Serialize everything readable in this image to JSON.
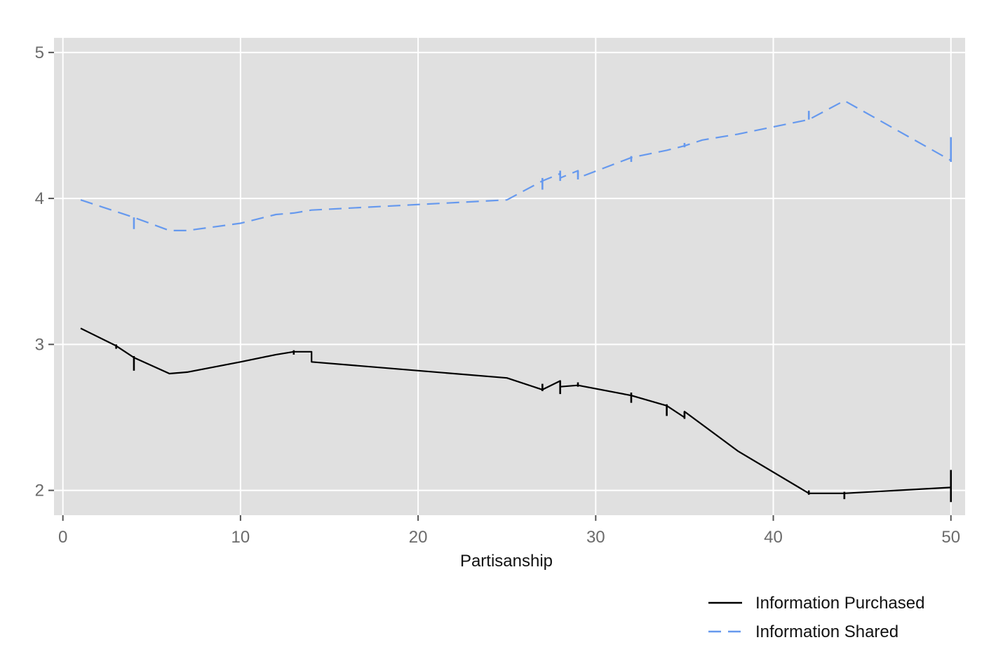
{
  "chart_data": {
    "type": "line",
    "xlabel": "Partisanship",
    "ylabel": "",
    "xlim": [
      -0.5,
      50.8
    ],
    "ylim": [
      1.83,
      5.1
    ],
    "x_ticks": [
      0,
      10,
      20,
      30,
      40,
      50
    ],
    "y_ticks": [
      2,
      3,
      4,
      5
    ],
    "x_tick_labels": [
      "0",
      "10",
      "20",
      "30",
      "40",
      "50"
    ],
    "y_tick_labels": [
      "2",
      "3",
      "4",
      "5"
    ],
    "grid": true,
    "legend_position": "bottom-right",
    "panel_color": "#e0e0e0",
    "grid_color": "#ffffff",
    "series": [
      {
        "name": "Information Purchased",
        "color": "#000000",
        "dash": "solid",
        "points": [
          [
            1,
            3.11
          ],
          [
            3,
            2.99
          ],
          [
            4,
            2.91
          ],
          [
            6,
            2.8
          ],
          [
            7,
            2.81
          ],
          [
            10,
            2.88
          ],
          [
            12,
            2.93
          ],
          [
            13,
            2.95
          ],
          [
            14,
            2.95
          ],
          [
            14,
            2.88
          ],
          [
            25,
            2.77
          ],
          [
            27,
            2.69
          ],
          [
            28,
            2.75
          ],
          [
            28,
            2.71
          ],
          [
            29,
            2.72
          ],
          [
            32,
            2.65
          ],
          [
            34,
            2.58
          ],
          [
            35,
            2.5
          ],
          [
            35,
            2.54
          ],
          [
            37,
            2.36
          ],
          [
            38,
            2.27
          ],
          [
            42,
            1.98
          ],
          [
            44,
            1.98
          ],
          [
            50,
            2.02
          ]
        ],
        "spikes": [
          [
            3,
            2.97,
            3.0
          ],
          [
            4,
            2.82,
            2.92
          ],
          [
            13,
            2.93,
            2.96
          ],
          [
            27,
            2.68,
            2.73
          ],
          [
            28,
            2.66,
            2.75
          ],
          [
            29,
            2.71,
            2.74
          ],
          [
            32,
            2.6,
            2.67
          ],
          [
            34,
            2.51,
            2.59
          ],
          [
            35,
            2.49,
            2.54
          ],
          [
            42,
            1.97,
            2.0
          ],
          [
            44,
            1.94,
            1.99
          ],
          [
            50,
            1.92,
            2.14
          ]
        ]
      },
      {
        "name": "Information Shared",
        "color": "#6699ee",
        "dash": "dashed",
        "points": [
          [
            1,
            3.99
          ],
          [
            3,
            3.91
          ],
          [
            4,
            3.87
          ],
          [
            6,
            3.78
          ],
          [
            7,
            3.78
          ],
          [
            10,
            3.83
          ],
          [
            12,
            3.89
          ],
          [
            13,
            3.9
          ],
          [
            14,
            3.92
          ],
          [
            25,
            3.99
          ],
          [
            27,
            4.12
          ],
          [
            28,
            4.17
          ],
          [
            28,
            4.14
          ],
          [
            29,
            4.19
          ],
          [
            29,
            4.14
          ],
          [
            32,
            4.28
          ],
          [
            34,
            4.33
          ],
          [
            35,
            4.36
          ],
          [
            36,
            4.4
          ],
          [
            38,
            4.44
          ],
          [
            42,
            4.54
          ],
          [
            44,
            4.67
          ],
          [
            50,
            4.26
          ]
        ],
        "spikes": [
          [
            4,
            3.79,
            3.87
          ],
          [
            27,
            4.06,
            4.14
          ],
          [
            28,
            4.12,
            4.19
          ],
          [
            29,
            4.13,
            4.19
          ],
          [
            32,
            4.25,
            4.29
          ],
          [
            35,
            4.35,
            4.38
          ],
          [
            42,
            4.54,
            4.6
          ],
          [
            50,
            4.25,
            4.42
          ]
        ]
      }
    ]
  }
}
